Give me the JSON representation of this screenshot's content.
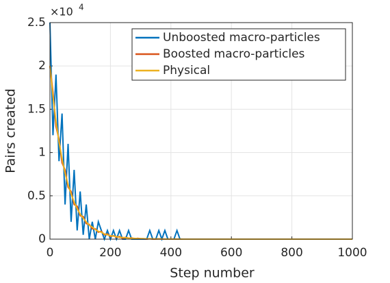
{
  "chart_data": {
    "type": "line",
    "x_label": "Step number",
    "y_label": "Pairs created",
    "y_multiplier": {
      "base": "×10",
      "exponent": "4"
    },
    "x": [
      0,
      10,
      20,
      30,
      40,
      50,
      60,
      70,
      80,
      90,
      100,
      110,
      120,
      130,
      140,
      150,
      160,
      170,
      180,
      190,
      200,
      210,
      220,
      230,
      240,
      250,
      260,
      270,
      280,
      290,
      300,
      310,
      320,
      330,
      340,
      350,
      360,
      370,
      380,
      390,
      400,
      410,
      420,
      430,
      440,
      500,
      600,
      700,
      800,
      900,
      1000
    ],
    "series": [
      {
        "name": "Unboosted macro-particles",
        "color": "#0072BD",
        "values": [
          2.5,
          1.2,
          1.9,
          0.9,
          1.45,
          0.4,
          1.1,
          0.2,
          0.8,
          0.1,
          0.55,
          0.05,
          0.4,
          0,
          0.2,
          0,
          0.2,
          0.1,
          0,
          0.1,
          0,
          0.1,
          0,
          0.1,
          0,
          0,
          0.1,
          0,
          0,
          0,
          0,
          0,
          0,
          0.1,
          0,
          0,
          0.1,
          0,
          0.1,
          0,
          0,
          0,
          0.1,
          0,
          0,
          0,
          0,
          0,
          0,
          0,
          0
        ]
      },
      {
        "name": "Boosted macro-particles",
        "color": "#D95319",
        "values": [
          2.0,
          1.7,
          1.3,
          1.15,
          0.88,
          0.8,
          0.6,
          0.55,
          0.4,
          0.38,
          0.27,
          0.26,
          0.18,
          0.17,
          0.12,
          0.12,
          0.08,
          0.09,
          0.05,
          0.06,
          0.03,
          0.04,
          0.02,
          0.03,
          0.01,
          0.02,
          0.01,
          0.015,
          0.005,
          0.01,
          0.005,
          0.005,
          0,
          0.005,
          0,
          0,
          0.003,
          0,
          0,
          0,
          0,
          0,
          0,
          0,
          0,
          0,
          0,
          0,
          0,
          0,
          0
        ]
      },
      {
        "name": "Physical",
        "color": "#EDB120",
        "values": [
          2.0,
          1.65,
          1.36,
          1.12,
          0.93,
          0.76,
          0.63,
          0.52,
          0.43,
          0.35,
          0.29,
          0.24,
          0.2,
          0.16,
          0.14,
          0.11,
          0.09,
          0.08,
          0.06,
          0.05,
          0.04,
          0.035,
          0.03,
          0.02,
          0.02,
          0.016,
          0.013,
          0.011,
          0.009,
          0.007,
          0.006,
          0.005,
          0.004,
          0.003,
          0.003,
          0.002,
          0.002,
          0.002,
          0.001,
          0.001,
          0.001,
          0.001,
          0.001,
          0.001,
          0,
          0,
          0,
          0,
          0,
          0,
          0
        ]
      }
    ],
    "xlim": [
      0,
      1000
    ],
    "xticks": [
      0,
      200,
      400,
      600,
      800,
      1000
    ],
    "ylim": [
      0,
      2.5
    ],
    "yticks": [
      0,
      0.5,
      1,
      1.5,
      2,
      2.5
    ],
    "grid": true,
    "legend": "upper right"
  }
}
